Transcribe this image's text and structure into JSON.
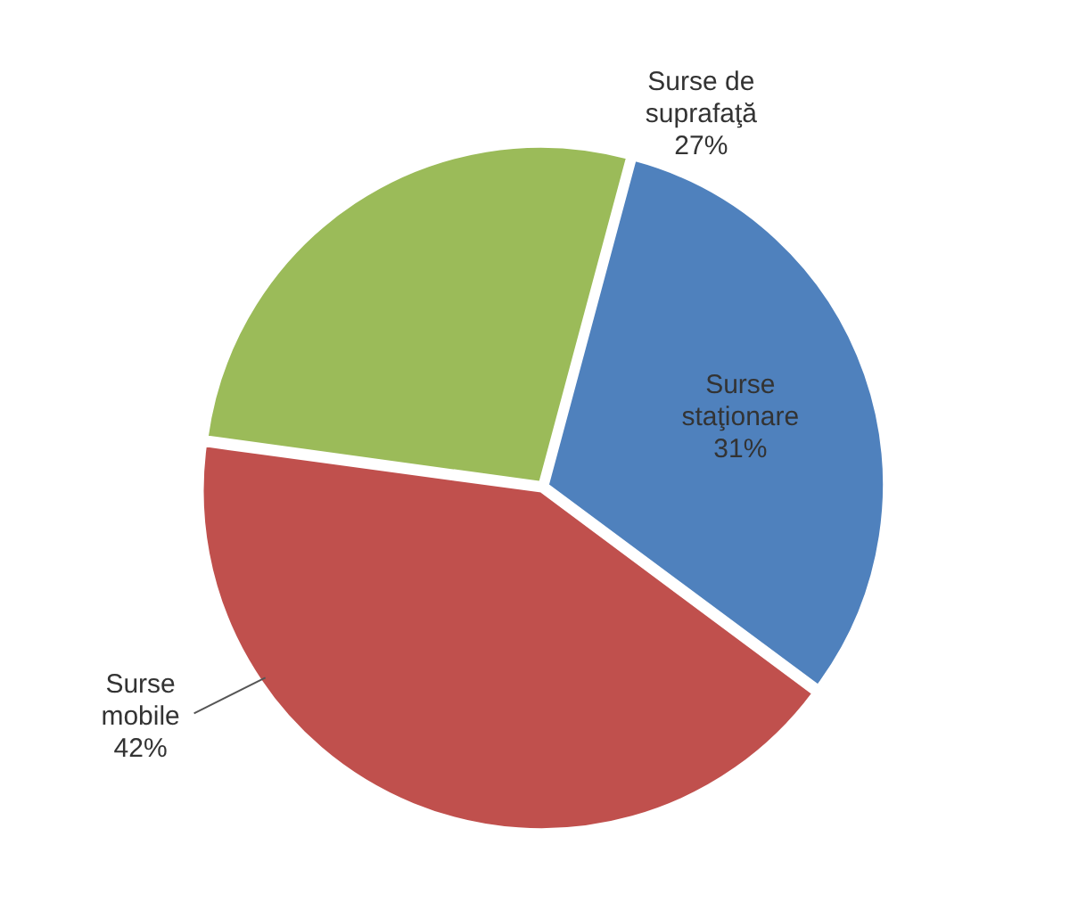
{
  "chart_data": {
    "type": "pie",
    "categories": [
      "Surse staţionare",
      "Surse mobile",
      "Surse de suprafaţă"
    ],
    "values": [
      31,
      42,
      27
    ],
    "value_labels": [
      "31%",
      "42%",
      "27%"
    ],
    "colors": [
      "#4f81bd",
      "#c0504d",
      "#9bbb59"
    ],
    "legend": false
  }
}
